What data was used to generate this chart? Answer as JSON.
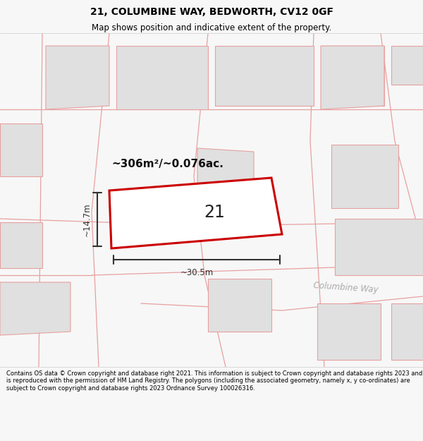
{
  "title": "21, COLUMBINE WAY, BEDWORTH, CV12 0GF",
  "subtitle": "Map shows position and indicative extent of the property.",
  "footer": "Contains OS data © Crown copyright and database right 2021. This information is subject to Crown copyright and database rights 2023 and is reproduced with the permission of HM Land Registry. The polygons (including the associated geometry, namely x, y co-ordinates) are subject to Crown copyright and database rights 2023 Ordnance Survey 100026316.",
  "area_label": "~306m²/~0.076ac.",
  "width_label": "~30.5m",
  "height_label": "~14.7m",
  "plot_number": "21",
  "bg_color": "#f7f7f7",
  "map_bg": "#ffffff",
  "building_fill": "#e0e0e0",
  "building_edge": "#e8a0a0",
  "road_color": "#e8a0a0",
  "highlight_fill": "#ffffff",
  "highlight_edge": "#cc0000",
  "dim_line_color": "#333333",
  "title_color": "#000000",
  "footer_color": "#000000",
  "street_label_color": "#aaaaaa",
  "area_label_color": "#111111"
}
